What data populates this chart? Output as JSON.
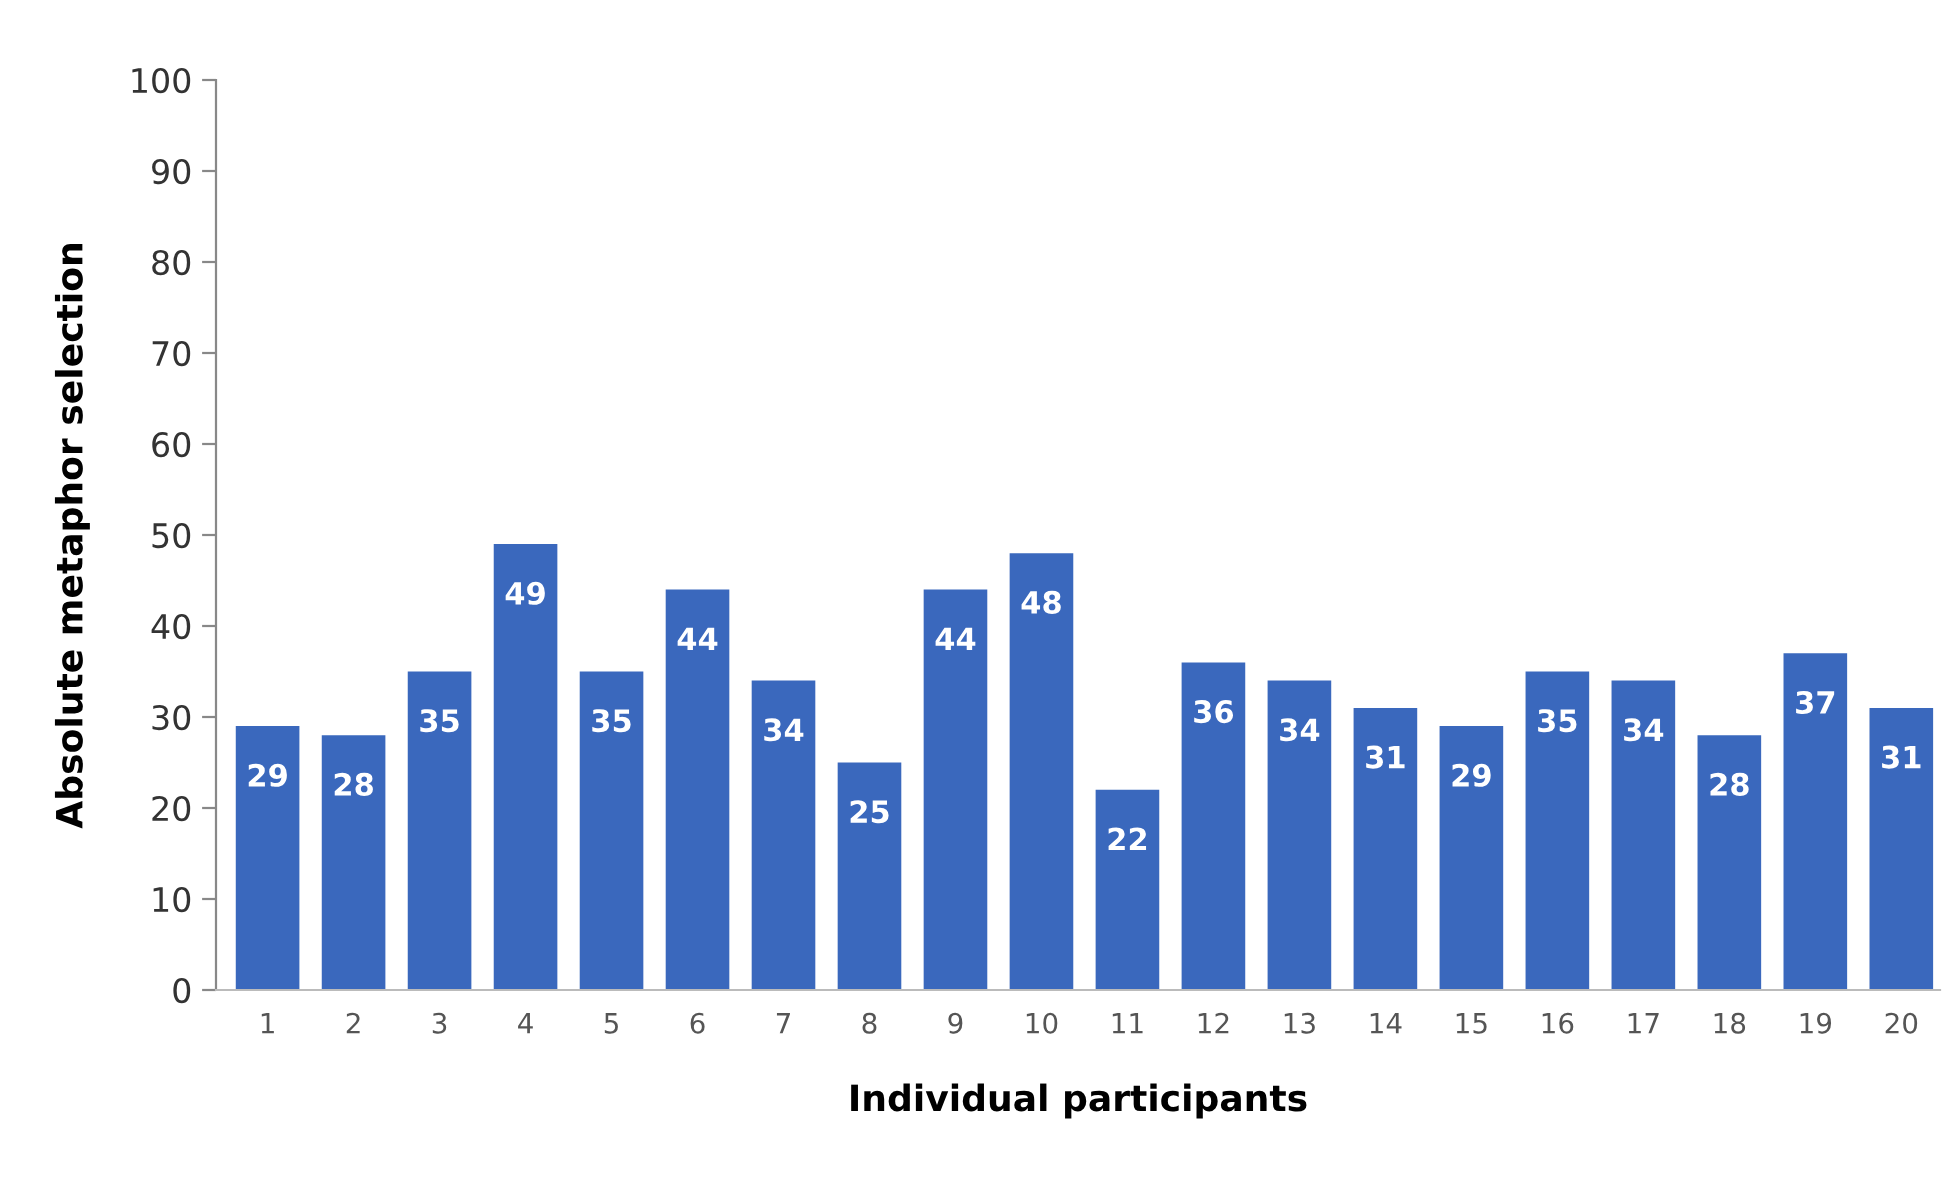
{
  "chart_data": {
    "type": "bar",
    "xlabel": "Individual participants",
    "ylabel": "Absolute metaphor selection",
    "categories": [
      "1",
      "2",
      "3",
      "4",
      "5",
      "6",
      "7",
      "8",
      "9",
      "10",
      "11",
      "12",
      "13",
      "14",
      "15",
      "16",
      "17",
      "18",
      "19",
      "20"
    ],
    "values": [
      29,
      28,
      35,
      49,
      35,
      44,
      34,
      25,
      44,
      48,
      22,
      36,
      34,
      31,
      29,
      35,
      34,
      28,
      37,
      31
    ],
    "color": "#3a68bd",
    "ylim": [
      0,
      100
    ],
    "yticks": [
      0,
      10,
      20,
      30,
      40,
      50,
      60,
      70,
      80,
      90,
      100
    ],
    "grid": false,
    "data_labels": true
  }
}
